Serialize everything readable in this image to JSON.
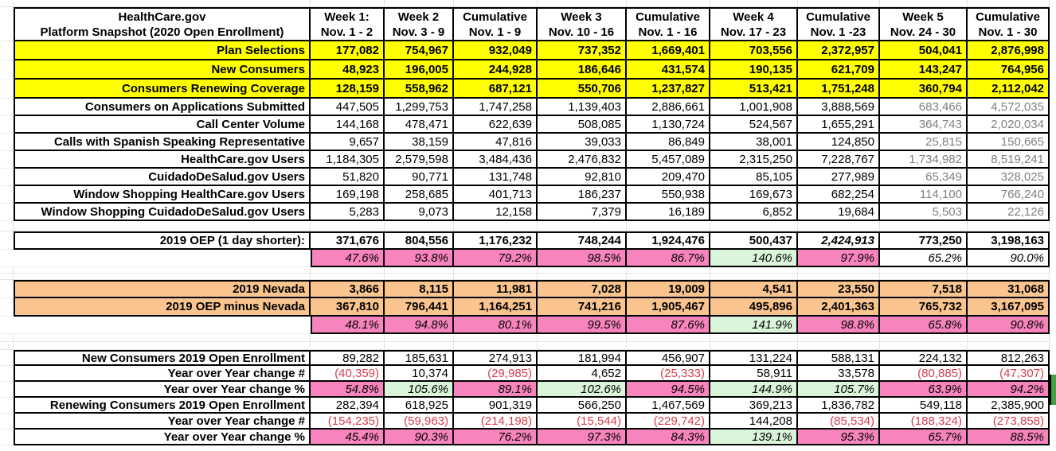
{
  "header": {
    "title": [
      "HealthCare.gov",
      "Platform Snapshot (2020 Open Enrollment)"
    ],
    "columns": [
      {
        "line1": "Week 1:",
        "line2": "Nov. 1 - 2"
      },
      {
        "line1": "Week 2",
        "line2": "Nov. 3 - 9"
      },
      {
        "line1": "Cumulative",
        "line2": "Nov. 1 - 9"
      },
      {
        "line1": "Week 3",
        "line2": "Nov. 10 - 16"
      },
      {
        "line1": "Cumulative",
        "line2": "Nov. 1 - 16"
      },
      {
        "line1": "Week 4",
        "line2": "Nov. 17 - 23"
      },
      {
        "line1": "Cumulative",
        "line2": "Nov. 1 -23"
      },
      {
        "line1": "Week 5",
        "line2": "Nov. 24 - 30"
      },
      {
        "line1": "Cumulative",
        "line2": "Nov. 1 - 30"
      }
    ]
  },
  "colors": {
    "yellow": "#FFFF00",
    "orange": "#FAC48F",
    "pink": "#F884BD",
    "green": "#DBF5DB",
    "red_text": "#D6404E",
    "gray_text": "#808080",
    "fragment_green": "#3FA33F"
  },
  "rows": [
    {
      "type": "yellow",
      "label": "Plan Selections",
      "values": [
        "177,082",
        "754,967",
        "932,049",
        "737,352",
        "1,669,401",
        "703,556",
        "2,372,957",
        "504,041",
        "2,876,998"
      ]
    },
    {
      "type": "yellow",
      "label": "New Consumers",
      "values": [
        "48,923",
        "196,005",
        "244,928",
        "186,646",
        "431,574",
        "190,135",
        "621,709",
        "143,247",
        "764,956"
      ]
    },
    {
      "type": "yellow",
      "label": "Consumers Renewing Coverage",
      "values": [
        "128,159",
        "558,962",
        "687,121",
        "550,706",
        "1,237,827",
        "513,421",
        "1,751,248",
        "360,794",
        "2,112,042"
      ]
    },
    {
      "type": "white",
      "label": "Consumers on Applications Submitted",
      "values": [
        "447,505",
        "1,299,753",
        "1,747,258",
        "1,139,403",
        "2,886,661",
        "1,001,908",
        "3,888,569",
        "683,466",
        "4,572,035"
      ]
    },
    {
      "type": "white",
      "label": "Call Center Volume",
      "values": [
        "144,168",
        "478,471",
        "622,639",
        "508,085",
        "1,130,724",
        "524,567",
        "1,655,291",
        "364,743",
        "2,020,034"
      ]
    },
    {
      "type": "white",
      "label": "Calls with Spanish Speaking Representative",
      "values": [
        "9,657",
        "38,159",
        "47,816",
        "39,033",
        "86,849",
        "38,001",
        "124,850",
        "25,815",
        "150,665"
      ]
    },
    {
      "type": "white",
      "label": "HealthCare.gov Users",
      "values": [
        "1,184,305",
        "2,579,598",
        "3,484,436",
        "2,476,832",
        "5,457,089",
        "2,315,250",
        "7,228,767",
        "1,734,982",
        "8,519,241"
      ]
    },
    {
      "type": "white",
      "label": "CuidadoDeSalud.gov Users",
      "values": [
        "51,820",
        "90,771",
        "131,748",
        "92,810",
        "209,470",
        "85,105",
        "277,989",
        "65,349",
        "328,025"
      ]
    },
    {
      "type": "white",
      "label": "Window Shopping HealthCare.gov Users",
      "values": [
        "169,198",
        "258,685",
        "401,713",
        "186,237",
        "550,938",
        "169,673",
        "682,254",
        "114,100",
        "766,240"
      ]
    },
    {
      "type": "white",
      "label": "Window Shopping CuidadoDeSalud.gov Users",
      "values": [
        "5,283",
        "9,073",
        "12,158",
        "7,379",
        "16,189",
        "6,852",
        "19,684",
        "5,503",
        "22,126"
      ]
    },
    {
      "type": "gap"
    },
    {
      "type": "oep",
      "top": true,
      "label": "2019 OEP (1 day shorter):",
      "values": [
        "371,676",
        "804,556",
        "1,176,232",
        "748,244",
        "1,924,476",
        "500,437",
        "2,424,913",
        "773,250",
        "3,198,163"
      ],
      "italic_cols": [
        6
      ]
    },
    {
      "type": "pct",
      "label": "",
      "values": [
        "47.6%",
        "93.8%",
        "79.2%",
        "98.5%",
        "86.7%",
        "140.6%",
        "97.9%",
        "65.2%",
        "90.0%"
      ],
      "fills": [
        "pink",
        "pink",
        "pink",
        "pink",
        "pink",
        "green",
        "pink",
        "none",
        "none"
      ]
    },
    {
      "type": "gap"
    },
    {
      "type": "gap"
    },
    {
      "type": "orange",
      "top": true,
      "label": "2019 Nevada",
      "values": [
        "3,866",
        "8,115",
        "11,981",
        "7,028",
        "19,009",
        "4,541",
        "23,550",
        "7,518",
        "31,068"
      ]
    },
    {
      "type": "orange",
      "label": "2019 OEP minus Nevada",
      "values": [
        "367,810",
        "796,441",
        "1,164,251",
        "741,216",
        "1,905,467",
        "495,896",
        "2,401,363",
        "765,732",
        "3,167,095"
      ]
    },
    {
      "type": "pct",
      "label": "",
      "values": [
        "48.1%",
        "94.8%",
        "80.1%",
        "99.5%",
        "87.6%",
        "141.9%",
        "98.8%",
        "65.8%",
        "90.8%"
      ],
      "fills": [
        "pink",
        "pink",
        "pink",
        "pink",
        "pink",
        "green",
        "pink",
        "pink",
        "pink"
      ]
    },
    {
      "type": "gap"
    },
    {
      "type": "gap"
    },
    {
      "type": "base",
      "top": true,
      "label": "New Consumers 2019 Open Enrollment",
      "values": [
        "89,282",
        "185,631",
        "274,913",
        "181,994",
        "456,907",
        "131,224",
        "588,131",
        "224,132",
        "812,263"
      ]
    },
    {
      "type": "yoy",
      "label": "Year over Year change #",
      "values": [
        "(40,359)",
        "10,374",
        "(29,985)",
        "4,652",
        "(25,333)",
        "58,911",
        "33,578",
        "(80,885)",
        "(47,307)"
      ]
    },
    {
      "type": "pct",
      "label": "Year over Year change %",
      "values": [
        "54.8%",
        "105.6%",
        "89.1%",
        "102.6%",
        "94.5%",
        "144.9%",
        "105.7%",
        "63.9%",
        "94.2%"
      ],
      "fills": [
        "pink",
        "green",
        "pink",
        "green",
        "pink",
        "green",
        "green",
        "pink",
        "pink"
      ]
    },
    {
      "type": "base",
      "label": "Renewing Consumers 2019 Open Enrollment",
      "values": [
        "282,394",
        "618,925",
        "901,319",
        "566,250",
        "1,467,569",
        "369,213",
        "1,836,782",
        "549,118",
        "2,385,900"
      ]
    },
    {
      "type": "yoy",
      "label": "Year over Year change #",
      "values": [
        "(154,235)",
        "(59,963)",
        "(214,198)",
        "(15,544)",
        "(229,742)",
        "144,208",
        "(85,534)",
        "(188,324)",
        "(273,858)"
      ]
    },
    {
      "type": "pct",
      "label": "Year over Year change %",
      "values": [
        "45.4%",
        "90.3%",
        "76.2%",
        "97.3%",
        "84.3%",
        "139.1%",
        "95.3%",
        "65.7%",
        "88.5%"
      ],
      "fills": [
        "pink",
        "pink",
        "pink",
        "pink",
        "pink",
        "green",
        "pink",
        "pink",
        "pink"
      ]
    }
  ]
}
